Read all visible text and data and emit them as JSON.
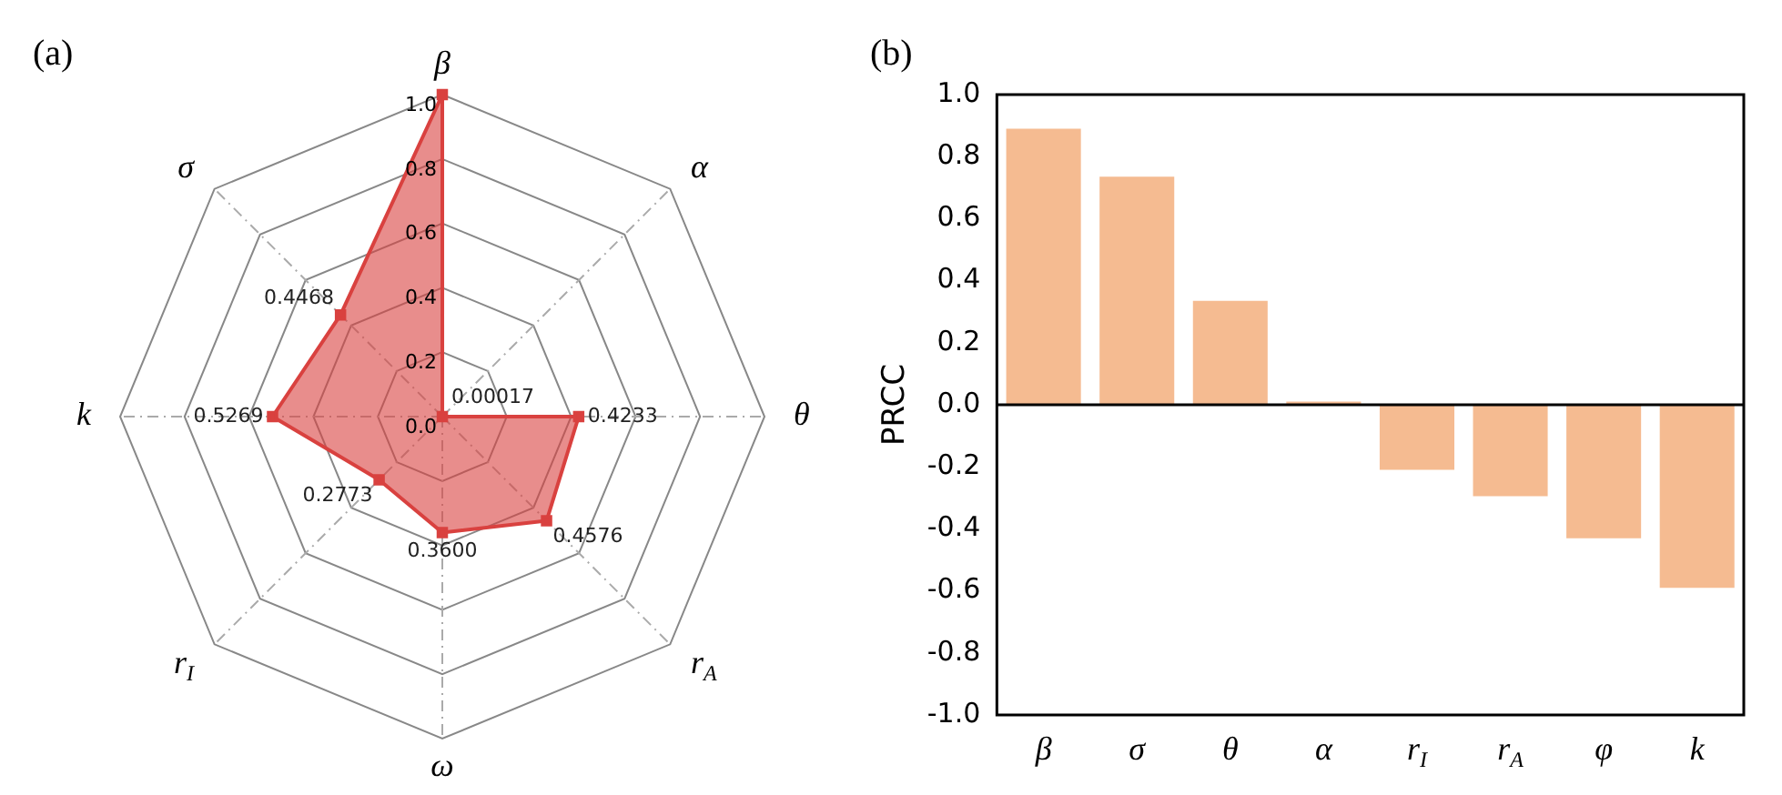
{
  "chart_data": [
    {
      "type": "radar",
      "title": "(a)",
      "categories": [
        "β",
        "α",
        "θ",
        "r$_{A}$",
        "ω",
        "r$_{I}$",
        "k",
        "σ"
      ],
      "series": [
        {
          "color": "#d9413f",
          "values": [
            1.0,
            0.00017,
            0.4233,
            0.4576,
            0.36,
            0.2773,
            0.5269,
            0.4468
          ],
          "value_labels": [
            null,
            "0.00017",
            "0.4233",
            "0.4576",
            "0.3600",
            "0.2773",
            "0.5269",
            "0.4468"
          ]
        }
      ],
      "ylim": [
        0,
        1
      ],
      "yticks": [
        {
          "value": 0,
          "label": "0.0"
        },
        {
          "value": 0.2,
          "label": "0.2"
        },
        {
          "value": 0.4,
          "label": "0.4"
        },
        {
          "value": 0.6,
          "label": "0.6"
        },
        {
          "value": 0.8,
          "label": "0.8"
        },
        {
          "value": 1,
          "label": "1.0"
        }
      ],
      "grid": true,
      "legend": false,
      "marker": "square",
      "line_style": "solid"
    },
    {
      "type": "bar",
      "title": "(b)",
      "ylabel": "PRCC",
      "categories": [
        "β",
        "σ",
        "θ",
        "α",
        "r$_{I}$",
        "r$_{A}$",
        "φ",
        "k"
      ],
      "values": [
        0.89,
        0.735,
        0.335,
        0.01,
        -0.21,
        -0.295,
        -0.43,
        -0.59
      ],
      "color": "#f5bb91",
      "ylim": [
        -1,
        1
      ],
      "yticks": [
        {
          "value": -1,
          "label": "-1.0"
        },
        {
          "value": -0.8,
          "label": "-0.8"
        },
        {
          "value": -0.6,
          "label": "-0.6"
        },
        {
          "value": -0.4,
          "label": "-0.4"
        },
        {
          "value": -0.2,
          "label": "-0.2"
        },
        {
          "value": 0,
          "label": "0.0"
        },
        {
          "value": 0.2,
          "label": "0.2"
        },
        {
          "value": 0.4,
          "label": "0.4"
        },
        {
          "value": 0.6,
          "label": "0.6"
        },
        {
          "value": 0.8,
          "label": "0.8"
        },
        {
          "value": 1,
          "label": "1.0"
        }
      ],
      "grid": false,
      "legend": false,
      "ref_lines": [
        {
          "axis": "y",
          "value": 0,
          "color": "#000000"
        }
      ]
    }
  ]
}
